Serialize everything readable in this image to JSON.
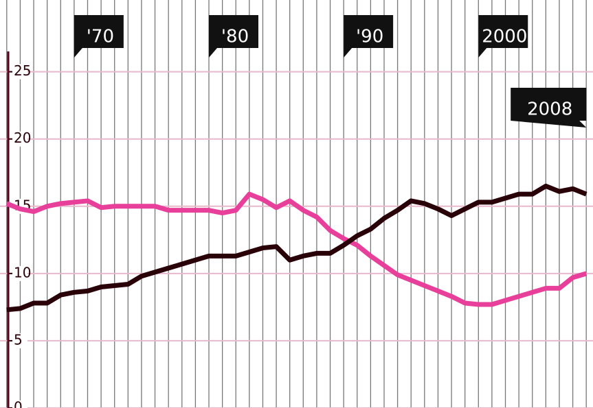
{
  "chart_data": {
    "type": "line",
    "x": [
      1965,
      1966,
      1967,
      1968,
      1969,
      1970,
      1971,
      1972,
      1973,
      1974,
      1975,
      1976,
      1977,
      1978,
      1979,
      1980,
      1981,
      1982,
      1983,
      1984,
      1985,
      1986,
      1987,
      1988,
      1989,
      1990,
      1991,
      1992,
      1993,
      1994,
      1995,
      1996,
      1997,
      1998,
      1999,
      2000,
      2001,
      2002,
      2003,
      2004,
      2005,
      2006,
      2007,
      2008
    ],
    "series": [
      {
        "color": "#e8409a",
        "values": [
          15.2,
          14.8,
          14.6,
          15.0,
          15.2,
          15.3,
          15.4,
          14.9,
          15.0,
          15.0,
          15.0,
          15.0,
          14.7,
          14.7,
          14.7,
          14.7,
          14.5,
          14.7,
          15.9,
          15.5,
          14.9,
          15.4,
          14.7,
          14.2,
          13.2,
          12.6,
          12.1,
          11.3,
          10.6,
          9.9,
          9.5,
          9.1,
          8.7,
          8.3,
          7.8,
          7.7,
          7.7,
          8.0,
          8.3,
          8.6,
          8.9,
          8.9,
          9.7,
          10.0
        ]
      },
      {
        "color": "#2a0008",
        "values": [
          7.3,
          7.4,
          7.8,
          7.8,
          8.4,
          8.6,
          8.7,
          9.0,
          9.1,
          9.2,
          9.8,
          10.1,
          10.4,
          10.7,
          11.0,
          11.3,
          11.3,
          11.3,
          11.6,
          11.9,
          12.0,
          11.0,
          11.3,
          11.5,
          11.5,
          12.1,
          12.8,
          13.3,
          14.1,
          14.7,
          15.4,
          15.2,
          14.8,
          14.3,
          14.8,
          15.3,
          15.3,
          15.6,
          15.9,
          15.9,
          16.5,
          16.1,
          16.3,
          15.9
        ]
      }
    ],
    "xlim": [
      1964.5,
      2008.5
    ],
    "xticks": [
      {
        "value": 1970,
        "label": "'70"
      },
      {
        "value": 1980,
        "label": "'80"
      },
      {
        "value": 1990,
        "label": "'90"
      },
      2000,
      2008
    ],
    "ylim": [
      0,
      26
    ],
    "yticks": [
      0,
      5,
      10,
      15,
      20,
      25
    ],
    "grid": true
  }
}
